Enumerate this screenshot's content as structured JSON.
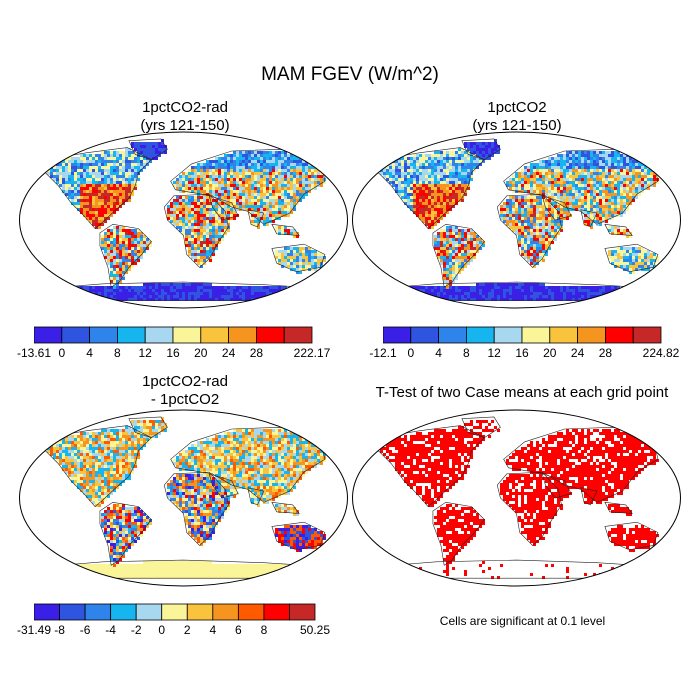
{
  "main_title": "MAM FGEV (W/m^2)",
  "panels": [
    {
      "id": "p1",
      "title_lines": [
        "1pctCO2-rad",
        "(yrs 121-150)"
      ],
      "colorbar": {
        "colors": [
          "#3a1fe6",
          "#2f55e0",
          "#2e84ea",
          "#17b5ef",
          "#a8d8f0",
          "#fbf59a",
          "#f9c33e",
          "#f69420",
          "#ff0000",
          "#c62828"
        ],
        "labels": [
          "-13.61",
          "0",
          "4",
          "8",
          "12",
          "16",
          "20",
          "24",
          "28",
          "222.17"
        ]
      }
    },
    {
      "id": "p2",
      "title_lines": [
        "1pctCO2",
        "(yrs 121-150)"
      ],
      "colorbar": {
        "colors": [
          "#3a1fe6",
          "#2f55e0",
          "#2e84ea",
          "#17b5ef",
          "#a8d8f0",
          "#fbf59a",
          "#f9c33e",
          "#f69420",
          "#ff0000",
          "#c62828"
        ],
        "labels": [
          "-12.1",
          "0",
          "4",
          "8",
          "12",
          "16",
          "20",
          "24",
          "28",
          "224.82"
        ]
      }
    },
    {
      "id": "p3",
      "title_lines": [
        "1pctCO2-rad",
        "- 1pctCO2"
      ],
      "colorbar": {
        "colors": [
          "#3a1fe6",
          "#2f55e0",
          "#2e84ea",
          "#17b5ef",
          "#a8d8f0",
          "#fbf59a",
          "#f9c33e",
          "#f69420",
          "#ff5a00",
          "#ff0000",
          "#c62828"
        ],
        "labels": [
          "-31.49",
          "-8",
          "-6",
          "-4",
          "-2",
          "0",
          "2",
          "4",
          "6",
          "8",
          "50.25"
        ]
      }
    },
    {
      "id": "p4",
      "title_lines": [
        "T-Test of two Case means at each grid point"
      ],
      "note": "Cells are significant at 0.1 level"
    }
  ]
}
